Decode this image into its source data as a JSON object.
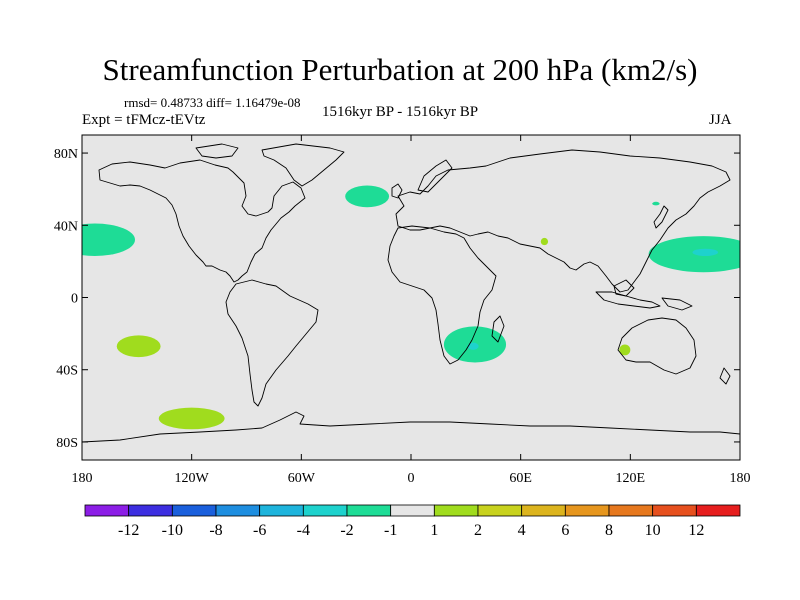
{
  "title": "Streamfunction Perturbation at 200 hPa (km2/s)",
  "stats": "rmsd= 0.48733 diff= 1.16479e-08",
  "experiment": "Expt = tFMcz-tEVtz",
  "subtitle": "1516kyr BP - 1516kyr BP",
  "season": "JJA",
  "axes": {
    "y_ticks": [
      {
        "lat": 80,
        "label": "80N"
      },
      {
        "lat": 40,
        "label": "40N"
      },
      {
        "lat": 0,
        "label": "0"
      },
      {
        "lat": -40,
        "label": "40S"
      },
      {
        "lat": -80,
        "label": "80S"
      }
    ],
    "x_ticks": [
      {
        "lon": -180,
        "label": "180"
      },
      {
        "lon": -120,
        "label": "120W"
      },
      {
        "lon": -60,
        "label": "60W"
      },
      {
        "lon": 0,
        "label": "0"
      },
      {
        "lon": 60,
        "label": "60E"
      },
      {
        "lon": 120,
        "label": "120E"
      },
      {
        "lon": 180,
        "label": "180"
      }
    ],
    "lon_range": [
      -180,
      180
    ],
    "lat_range": [
      -90,
      90
    ]
  },
  "colorbar": {
    "colors": [
      "#8c1ee6",
      "#3d2ee0",
      "#1a5fdc",
      "#1e8ee0",
      "#1eb4dc",
      "#1ed2cd",
      "#1edc96",
      "#e6e6e6",
      "#a0dc1e",
      "#c8d21e",
      "#dcb41e",
      "#e6961e",
      "#e6781e",
      "#e6501e",
      "#e61e1e"
    ],
    "labels": [
      "-12",
      "-10",
      "-8",
      "-6",
      "-4",
      "-2",
      "-1",
      "1",
      "2",
      "4",
      "6",
      "8",
      "10",
      "12"
    ]
  },
  "colors": {
    "background": "#e6e6e6",
    "negative_small": "#1edc96",
    "negative_mid": "#1ed2cd",
    "positive_small": "#a0dc1e",
    "coast": "#000000"
  },
  "anomalies": [
    {
      "name": "anomaly-north-pacific-east",
      "lon": -173,
      "lat": 32,
      "rlon": 22,
      "rlat": 9,
      "value": -1.5
    },
    {
      "name": "anomaly-north-atlantic",
      "lon": -24,
      "lat": 56,
      "rlon": 12,
      "rlat": 6,
      "value": -1.5
    },
    {
      "name": "anomaly-west-pacific",
      "lon": 160,
      "lat": 24,
      "rlon": 30,
      "rlat": 10,
      "value": -1.5
    },
    {
      "name": "anomaly-west-pacific-core",
      "lon": 161,
      "lat": 25,
      "rlon": 7,
      "rlat": 2,
      "value": -2.5
    },
    {
      "name": "anomaly-south-africa",
      "lon": 35,
      "lat": -26,
      "rlon": 17,
      "rlat": 10,
      "value": -1.5
    },
    {
      "name": "anomaly-south-africa-core",
      "lon": 34,
      "lat": -27,
      "rlon": 3,
      "rlat": 2,
      "value": -2.5
    },
    {
      "name": "anomaly-south-pacific",
      "lon": -149,
      "lat": -27,
      "rlon": 12,
      "rlat": 6,
      "value": 1.5
    },
    {
      "name": "anomaly-southern-ocean",
      "lon": -120,
      "lat": -67,
      "rlon": 18,
      "rlat": 6,
      "value": 1.5
    },
    {
      "name": "anomaly-west-australia",
      "lon": 117,
      "lat": -29,
      "rlon": 3,
      "rlat": 3,
      "value": 1.5
    },
    {
      "name": "anomaly-central-asia",
      "lon": 73,
      "lat": 31,
      "rlon": 2,
      "rlat": 2,
      "value": 1.5
    },
    {
      "name": "anomaly-east-asia",
      "lon": 134,
      "lat": 52,
      "rlon": 2,
      "rlat": 1,
      "value": -1.5
    }
  ]
}
